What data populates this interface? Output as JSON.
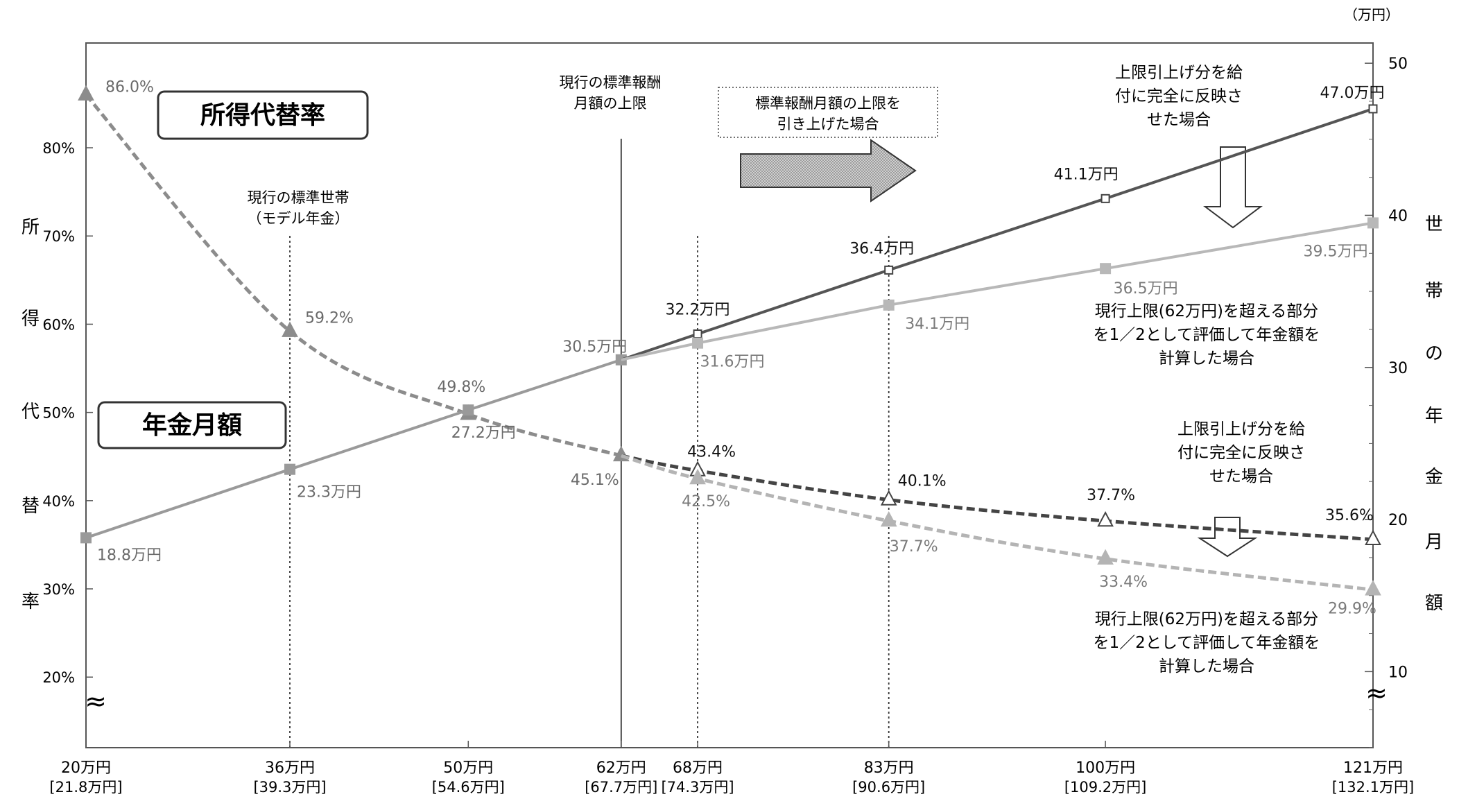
{
  "chart_data": {
    "type": "line",
    "title": "",
    "left_axis": {
      "label_chars": [
        "所",
        "得",
        "代",
        "替",
        "率"
      ],
      "ticks": [
        20,
        30,
        40,
        50,
        60,
        70,
        80
      ],
      "tick_labels": [
        "20%",
        "30%",
        "40%",
        "50%",
        "60%",
        "70%",
        "80%"
      ],
      "ylim": [
        12,
        90
      ]
    },
    "right_axis": {
      "unit": "（万円）",
      "label_chars": [
        "世",
        "帯",
        "の",
        "年",
        "金",
        "月",
        "額"
      ],
      "ticks": [
        10,
        20,
        30,
        40,
        50
      ],
      "ylim": [
        5,
        50
      ]
    },
    "x": [
      20,
      36,
      50,
      62,
      68,
      83,
      100,
      121
    ],
    "x_labels": [
      "20万円",
      "36万円",
      "50万円",
      "62万円",
      "68万円",
      "83万円",
      "100万円",
      "121万円"
    ],
    "x_sublabels": [
      "[21.8万円]",
      "[39.3万円]",
      "[54.6万円]",
      "[67.7万円]",
      "[74.3万円]",
      "[90.6万円]",
      "[109.2万円]",
      "[132.1万円]"
    ],
    "xlim": [
      20,
      121
    ],
    "break_symbol": "≈",
    "vlines": [
      {
        "x": 36,
        "style": "dotted"
      },
      {
        "x": 62,
        "style": "solid"
      },
      {
        "x": 68,
        "style": "dotted"
      },
      {
        "x": 83,
        "style": "dotted"
      }
    ],
    "series": [
      {
        "axis": "left",
        "points": [
          [
            20,
            86.0
          ],
          [
            36,
            59.2
          ],
          [
            50,
            49.8
          ],
          [
            62,
            45.1
          ]
        ],
        "labels": [
          "86.0%",
          "59.2%",
          "49.8%",
          "45.1%"
        ],
        "marker": "triangle",
        "dashed": true,
        "color": "#8c8c8c"
      },
      {
        "axis": "left",
        "points": [
          [
            62,
            45.1
          ],
          [
            68,
            43.4
          ],
          [
            83,
            40.1
          ],
          [
            100,
            37.7
          ],
          [
            121,
            35.6
          ]
        ],
        "labels": [
          "",
          "43.4%",
          "40.1%",
          "37.7%",
          "35.6%"
        ],
        "marker": "triangle-open",
        "dashed": true,
        "color": "#444444"
      },
      {
        "axis": "left",
        "points": [
          [
            62,
            45.1
          ],
          [
            68,
            42.5
          ],
          [
            83,
            37.7
          ],
          [
            100,
            33.4
          ],
          [
            121,
            29.9
          ]
        ],
        "labels": [
          "",
          "42.5%",
          "37.7%",
          "33.4%",
          "29.9%"
        ],
        "marker": "triangle",
        "dashed": true,
        "color": "#b4b4b4"
      },
      {
        "axis": "right",
        "points": [
          [
            20,
            18.8
          ],
          [
            36,
            23.3
          ],
          [
            50,
            27.2
          ],
          [
            62,
            30.5
          ]
        ],
        "labels": [
          "18.8万円",
          "23.3万円",
          "27.2万円",
          "30.5万円"
        ],
        "marker": "square",
        "dashed": false,
        "color": "#9a9a9a"
      },
      {
        "axis": "right",
        "points": [
          [
            62,
            30.5
          ],
          [
            68,
            32.2
          ],
          [
            83,
            36.4
          ],
          [
            100,
            41.1
          ],
          [
            121,
            47.0
          ]
        ],
        "labels": [
          "",
          "32.2万円",
          "36.4万円",
          "41.1万円",
          "47.0万円"
        ],
        "marker": "square-open",
        "dashed": false,
        "color": "#555555"
      },
      {
        "axis": "right",
        "points": [
          [
            62,
            30.5
          ],
          [
            68,
            31.6
          ],
          [
            83,
            34.1
          ],
          [
            100,
            36.5
          ],
          [
            121,
            39.5
          ]
        ],
        "labels": [
          "",
          "31.6万円",
          "34.1万円",
          "36.5万円",
          "39.5万円"
        ],
        "marker": "square",
        "dashed": false,
        "color": "#b8b8b8"
      }
    ],
    "annotations": {
      "box_rate": "所得代替率",
      "box_pension": "年金月額",
      "model_household": [
        "現行の標準世帯",
        "（モデル年金）"
      ],
      "current_cap": [
        "現行の標準報酬",
        "月額の上限"
      ],
      "raise_box": [
        "標準報酬月額の上限を",
        "引き上げた場合"
      ],
      "full_reflect": [
        "上限引上げ分を給",
        "付に完全に反映さ",
        "せた場合"
      ],
      "half_value": [
        "現行上限(62万円)を超える部分",
        "を1／2として評価して年金額を",
        "計算した場合"
      ]
    }
  }
}
